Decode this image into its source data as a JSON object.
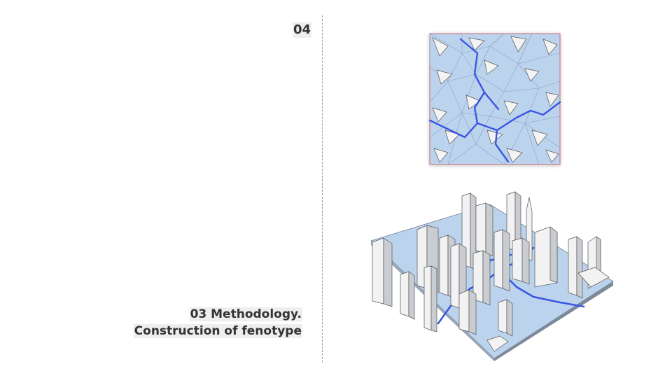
{
  "page_number": "04",
  "section": {
    "line1": "03 Methodology.",
    "line2": "Construction of fenotype"
  },
  "figures": [
    {
      "name": "plan-view",
      "icon": "triangulated-plan-diagram"
    },
    {
      "name": "isometric-view",
      "icon": "isometric-towers-diagram"
    }
  ],
  "colors": {
    "text": "#333333",
    "label_background": "#eeeeee",
    "divider": "#9a9a9a",
    "mesh_fill": "#bcd3ee",
    "path_blue": "#3a57e0",
    "border_red": "#d06a78"
  }
}
